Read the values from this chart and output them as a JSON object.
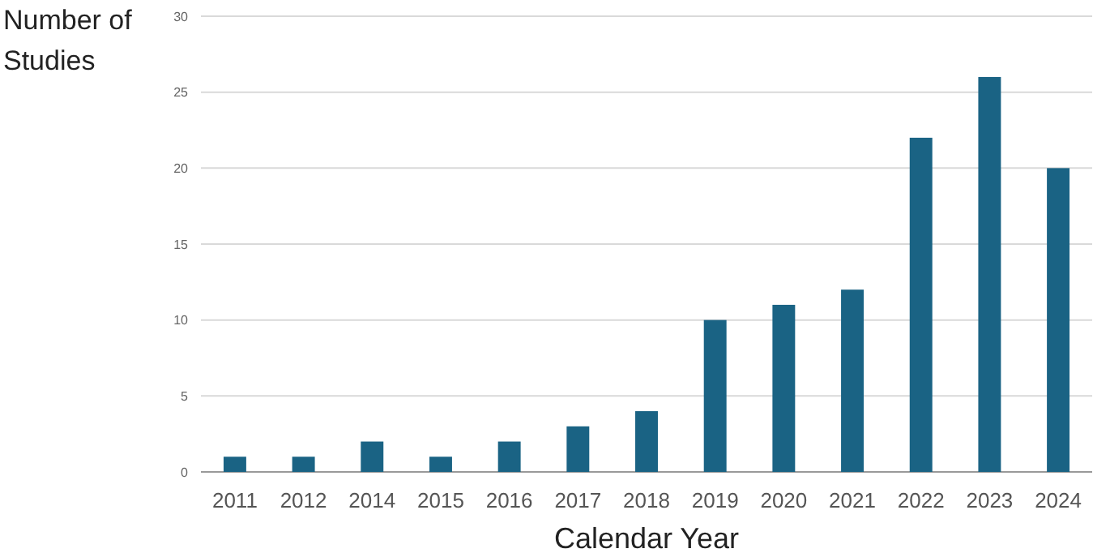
{
  "chart_data": {
    "type": "bar",
    "ylabel": "Number of Studies",
    "xlabel": "Calendar Year",
    "categories": [
      "2011",
      "2012",
      "2014",
      "2015",
      "2016",
      "2017",
      "2018",
      "2019",
      "2020",
      "2021",
      "2022",
      "2023",
      "2024"
    ],
    "values": [
      1,
      1,
      2,
      1,
      2,
      3,
      4,
      10,
      11,
      12,
      22,
      26,
      20
    ],
    "color": "#1a6384",
    "ylim": [
      0,
      30
    ],
    "yticks": [
      0,
      5,
      10,
      15,
      20,
      25,
      30
    ],
    "grid": "y"
  }
}
